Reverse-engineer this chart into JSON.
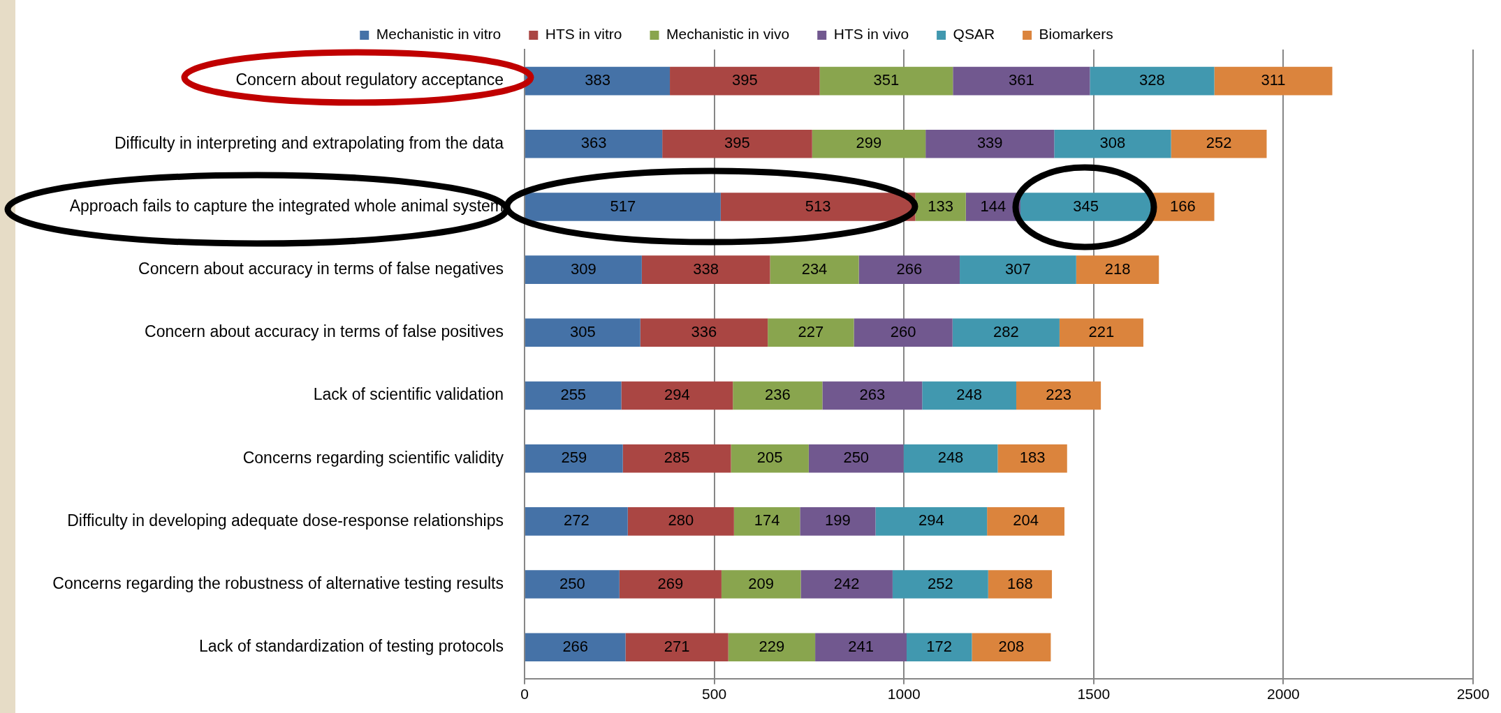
{
  "chart_data": {
    "type": "bar",
    "orientation": "horizontal",
    "stacked": true,
    "data_labels": true,
    "grid": "x",
    "legend": "top",
    "categories": [
      "Concern about regulatory acceptance",
      "Difficulty in interpreting and extrapolating from the data",
      "Approach fails to capture the integrated whole animal system",
      "Concern about accuracy in terms of false negatives",
      "Concern about accuracy in terms of false positives",
      "Lack of scientific validation",
      "Concerns regarding scientific validity",
      "Difficulty in developing adequate dose-response relationships",
      "Concerns regarding the robustness of alternative testing results",
      "Lack of standardization of testing protocols"
    ],
    "series": [
      {
        "name": "Mechanistic in vitro",
        "color": "#4572a7",
        "values": [
          383,
          363,
          517,
          309,
          305,
          255,
          259,
          272,
          250,
          266
        ]
      },
      {
        "name": "HTS in vitro",
        "color": "#aa4643",
        "values": [
          395,
          395,
          513,
          338,
          336,
          294,
          285,
          280,
          269,
          271
        ]
      },
      {
        "name": "Mechanistic in vivo",
        "color": "#89a54e",
        "values": [
          351,
          299,
          133,
          234,
          227,
          236,
          205,
          174,
          209,
          229
        ]
      },
      {
        "name": "HTS in vivo",
        "color": "#71588f",
        "values": [
          361,
          339,
          144,
          266,
          260,
          263,
          250,
          199,
          242,
          241
        ]
      },
      {
        "name": "QSAR",
        "color": "#4198af",
        "values": [
          328,
          308,
          345,
          307,
          282,
          248,
          248,
          294,
          252,
          172
        ]
      },
      {
        "name": "Biomarkers",
        "color": "#db843d",
        "values": [
          311,
          252,
          166,
          218,
          221,
          223,
          183,
          204,
          168,
          208
        ]
      }
    ],
    "xlim": [
      0,
      2500
    ],
    "xticks": [
      0,
      500,
      1000,
      1500,
      2000,
      2500
    ]
  }
}
